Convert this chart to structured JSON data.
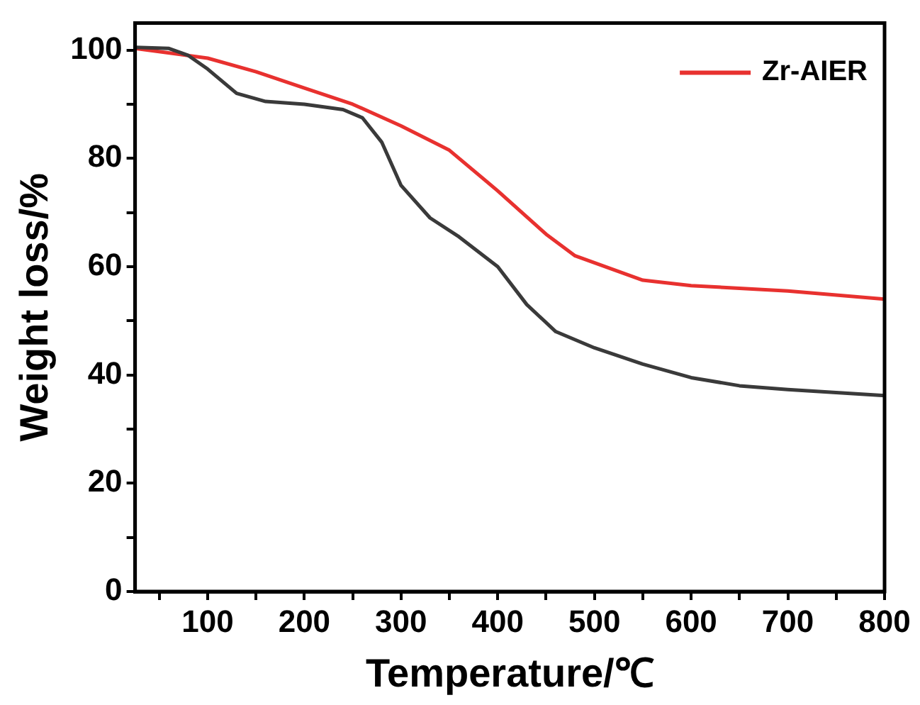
{
  "chart_data": {
    "type": "line",
    "xlabel": "Temperature/℃",
    "ylabel": "Weight loss/%",
    "xlim": [
      25,
      800
    ],
    "ylim": [
      0,
      105
    ],
    "xticks": [
      {
        "value": 50,
        "label": null
      },
      100,
      {
        "value": 150,
        "label": null
      },
      200,
      {
        "value": 250,
        "label": null
      },
      300,
      {
        "value": 350,
        "label": null
      },
      400,
      {
        "value": 450,
        "label": null
      },
      500,
      {
        "value": 550,
        "label": null
      },
      600,
      {
        "value": 650,
        "label": null
      },
      700,
      {
        "value": 750,
        "label": null
      },
      800
    ],
    "yticks": [
      0,
      {
        "value": 10,
        "label": null
      },
      20,
      {
        "value": 30,
        "label": null
      },
      40,
      {
        "value": 50,
        "label": null
      },
      60,
      {
        "value": 70,
        "label": null
      },
      80,
      {
        "value": 90,
        "label": null
      },
      100
    ],
    "grid": false,
    "legend": "top right",
    "marker": "none",
    "line_style": "solid",
    "series": [
      {
        "color": "#3a3a3a",
        "x": [
          25,
          60,
          80,
          100,
          130,
          160,
          200,
          240,
          260,
          280,
          300,
          330,
          360,
          400,
          430,
          460,
          500,
          550,
          600,
          650,
          700,
          800
        ],
        "values": [
          100.5,
          100.3,
          99,
          96.5,
          92,
          90.5,
          90,
          89,
          87.5,
          83,
          75,
          69,
          65.5,
          60,
          53,
          48,
          45,
          42,
          39.5,
          38,
          37.3,
          36.2
        ]
      },
      {
        "name": "Zr-AIER",
        "color": "#e8312f",
        "x": [
          25,
          100,
          150,
          200,
          250,
          300,
          350,
          400,
          450,
          480,
          550,
          600,
          700,
          800
        ],
        "values": [
          100.3,
          98.5,
          96,
          93,
          90,
          86,
          81.5,
          74,
          66,
          62,
          57.5,
          56.5,
          55.5,
          54
        ]
      }
    ]
  }
}
